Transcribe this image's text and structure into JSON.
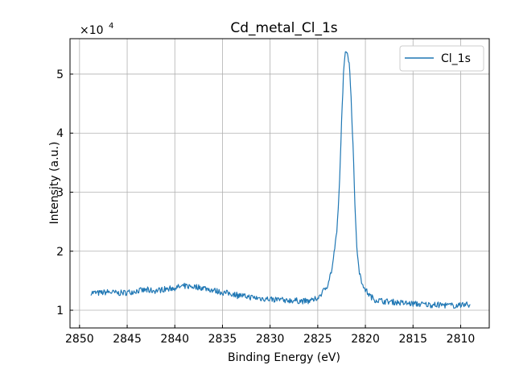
{
  "chart_data": {
    "type": "line",
    "title": "Cd_metal_Cl_1s",
    "xlabel": "Binding Energy (eV)",
    "ylabel": "Intensity (a.u.)",
    "y_multiplier_label": "×10",
    "y_multiplier_exponent": "4",
    "xlim": [
      2851,
      2807
    ],
    "x_reversed": true,
    "ylim": [
      0.7,
      5.6
    ],
    "y_units_scale": 10000,
    "xticks": [
      2850,
      2845,
      2840,
      2835,
      2830,
      2825,
      2820,
      2815,
      2810
    ],
    "yticks": [
      1,
      2,
      3,
      4,
      5
    ],
    "grid": true,
    "legend_position": "top-right",
    "color": "#1f77b4",
    "series": [
      {
        "name": "Cl_1s",
        "points": [
          [
            2848.8,
            1.3
          ],
          [
            2848.0,
            1.29
          ],
          [
            2847.0,
            1.31
          ],
          [
            2846.0,
            1.29
          ],
          [
            2845.0,
            1.3
          ],
          [
            2844.0,
            1.33
          ],
          [
            2843.0,
            1.34
          ],
          [
            2842.0,
            1.33
          ],
          [
            2841.0,
            1.36
          ],
          [
            2840.0,
            1.38
          ],
          [
            2839.0,
            1.41
          ],
          [
            2838.0,
            1.4
          ],
          [
            2837.0,
            1.38
          ],
          [
            2836.0,
            1.34
          ],
          [
            2835.0,
            1.3
          ],
          [
            2834.0,
            1.28
          ],
          [
            2833.0,
            1.25
          ],
          [
            2832.0,
            1.22
          ],
          [
            2831.0,
            1.2
          ],
          [
            2830.0,
            1.19
          ],
          [
            2829.0,
            1.18
          ],
          [
            2828.0,
            1.17
          ],
          [
            2827.0,
            1.16
          ],
          [
            2826.0,
            1.15
          ],
          [
            2825.5,
            1.16
          ],
          [
            2825.0,
            1.22
          ],
          [
            2824.5,
            1.3
          ],
          [
            2824.0,
            1.42
          ],
          [
            2823.5,
            1.7
          ],
          [
            2823.0,
            2.3
          ],
          [
            2822.7,
            3.2
          ],
          [
            2822.5,
            4.2
          ],
          [
            2822.3,
            5.0
          ],
          [
            2822.1,
            5.35
          ],
          [
            2821.9,
            5.38
          ],
          [
            2821.7,
            5.2
          ],
          [
            2821.5,
            4.6
          ],
          [
            2821.3,
            3.8
          ],
          [
            2821.1,
            2.8
          ],
          [
            2820.9,
            2.1
          ],
          [
            2820.7,
            1.7
          ],
          [
            2820.4,
            1.5
          ],
          [
            2820.0,
            1.35
          ],
          [
            2819.5,
            1.24
          ],
          [
            2819.0,
            1.18
          ],
          [
            2818.0,
            1.15
          ],
          [
            2817.0,
            1.14
          ],
          [
            2816.0,
            1.12
          ],
          [
            2815.0,
            1.11
          ],
          [
            2814.0,
            1.1
          ],
          [
            2813.0,
            1.09
          ],
          [
            2812.0,
            1.09
          ],
          [
            2811.0,
            1.08
          ],
          [
            2810.0,
            1.08
          ],
          [
            2809.0,
            1.1
          ]
        ]
      }
    ]
  }
}
